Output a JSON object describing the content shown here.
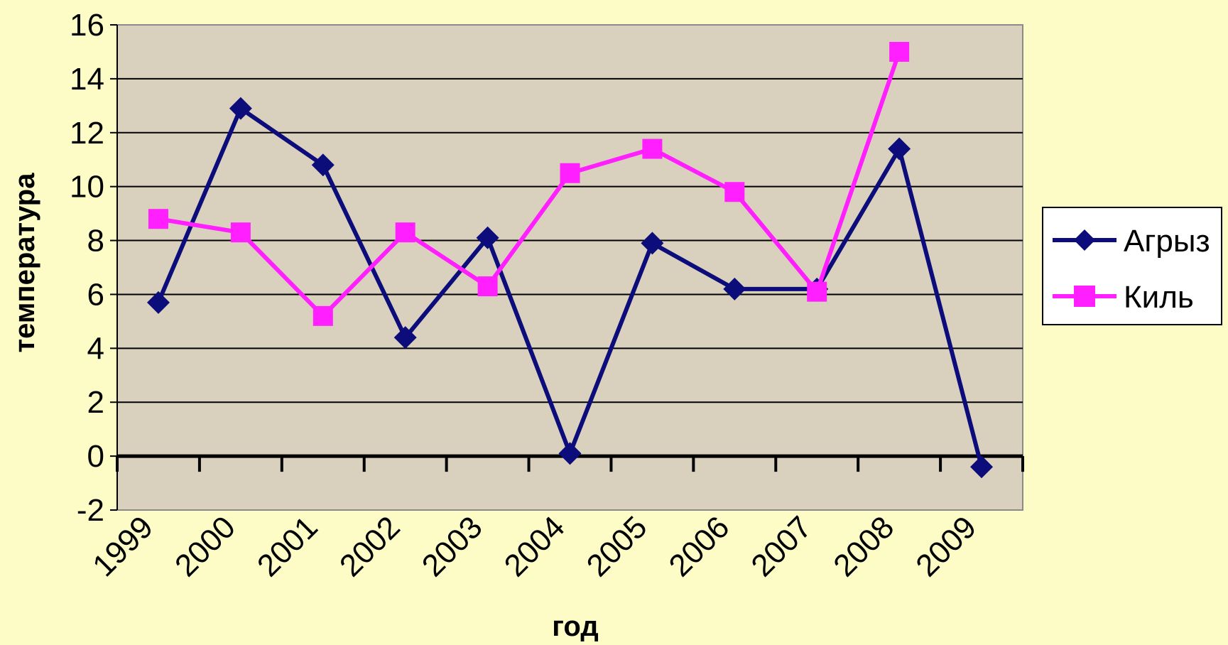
{
  "chart_data": {
    "type": "line",
    "title": "",
    "xlabel": "год",
    "ylabel": "температура",
    "categories": [
      "1999",
      "2000",
      "2001",
      "2002",
      "2003",
      "2004",
      "2005",
      "2006",
      "2007",
      "2008",
      "2009"
    ],
    "ylim": [
      -2,
      16
    ],
    "y_ticks": [
      16,
      14,
      12,
      10,
      8,
      6,
      4,
      2,
      0,
      -2
    ],
    "grid": true,
    "legend_position": "right",
    "series": [
      {
        "name": "Агрыз",
        "color": "#0c0c7a",
        "marker": "diamond",
        "values": [
          5.7,
          12.9,
          10.8,
          4.4,
          8.1,
          0.1,
          7.9,
          6.2,
          6.2,
          11.4,
          -0.4
        ]
      },
      {
        "name": "Киль",
        "color": "#ff1fff",
        "marker": "square",
        "values": [
          8.8,
          8.3,
          5.2,
          8.3,
          6.3,
          10.5,
          11.4,
          9.8,
          6.1,
          15.0,
          null
        ]
      }
    ],
    "colors": {
      "page_background": "#fdfbc6",
      "plot_background": "#d9d1be",
      "gridline": "#000000"
    }
  }
}
